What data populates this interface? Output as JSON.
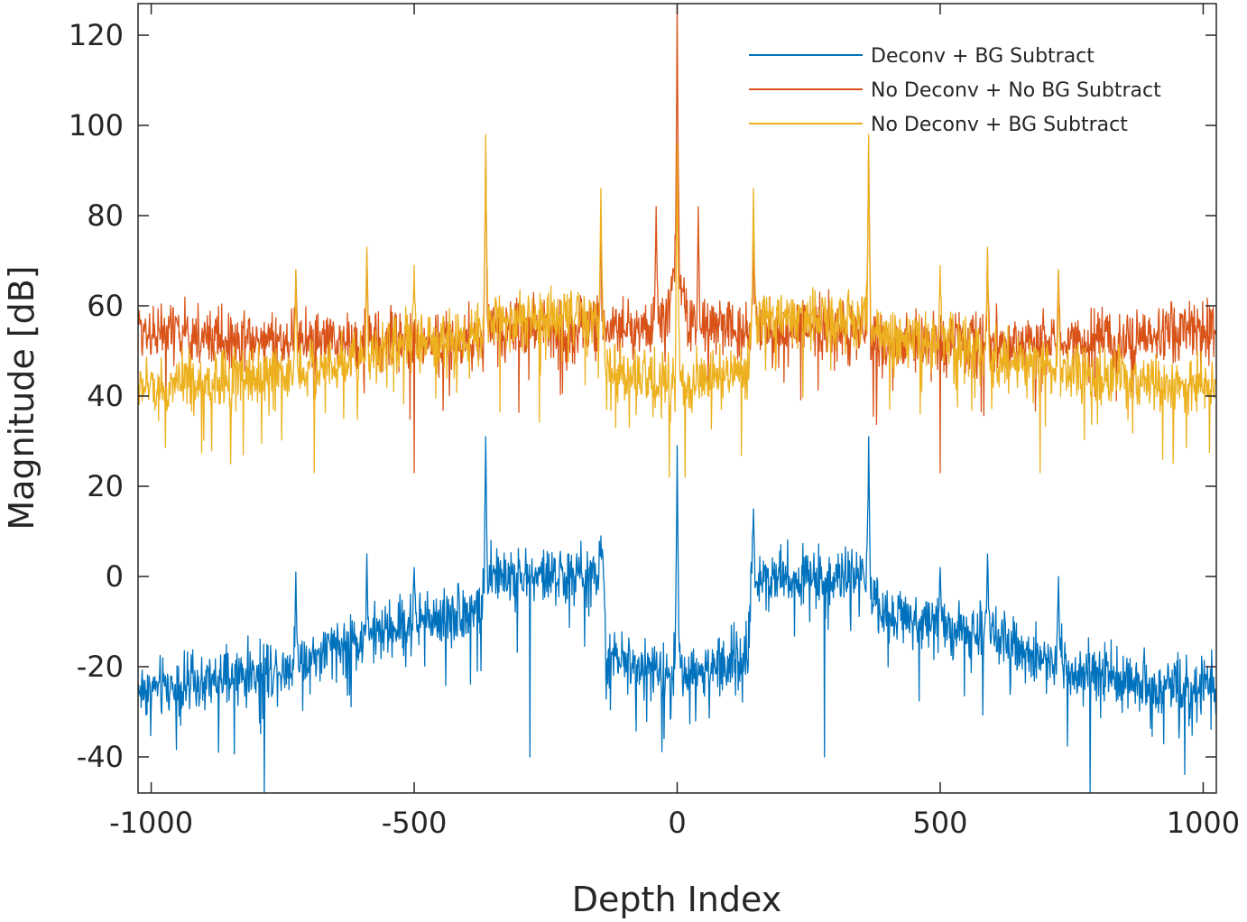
{
  "chart_data": {
    "type": "line",
    "title": "",
    "xlabel": "Depth Index",
    "ylabel": "Magnitude [dB]",
    "xlim": [
      -1025,
      1025
    ],
    "ylim": [
      -48,
      127
    ],
    "xticks": [
      -1000,
      -500,
      0,
      500,
      1000
    ],
    "yticks": [
      -40,
      -20,
      0,
      20,
      40,
      60,
      80,
      100,
      120
    ],
    "xtick_labels": [
      "-1000",
      "-500",
      "0",
      "500",
      "1000"
    ],
    "ytick_labels": [
      "-40",
      "-20",
      "0",
      "20",
      "40",
      "60",
      "80",
      "100",
      "120"
    ],
    "grid": false,
    "legend_position": "top-right",
    "series": [
      {
        "name": "Deconv + BG Subtract",
        "color": "#0072BD",
        "baseline_profile": [
          [
            -1024,
            -25
          ],
          [
            -900,
            -24
          ],
          [
            -750,
            -20
          ],
          [
            -600,
            -14
          ],
          [
            -500,
            -10
          ],
          [
            -370,
            -7
          ],
          [
            -365,
            0
          ],
          [
            -140,
            0
          ],
          [
            -135,
            -18
          ],
          [
            -10,
            -22
          ],
          [
            0,
            -12
          ],
          [
            10,
            -22
          ],
          [
            135,
            -18
          ],
          [
            140,
            0
          ],
          [
            365,
            0
          ],
          [
            370,
            -7
          ],
          [
            500,
            -10
          ],
          [
            600,
            -14
          ],
          [
            750,
            -20
          ],
          [
            900,
            -24
          ],
          [
            1024,
            -25
          ]
        ],
        "noise_amplitude": 6,
        "peaks": [
          {
            "x": 0,
            "y": 29
          },
          {
            "x": -364,
            "y": 31
          },
          {
            "x": 364,
            "y": 31
          },
          {
            "x": -145,
            "y": 9
          },
          {
            "x": 145,
            "y": 15
          },
          {
            "x": -590,
            "y": 5
          },
          {
            "x": 590,
            "y": 5
          },
          {
            "x": -725,
            "y": 1
          },
          {
            "x": 725,
            "y": 0
          },
          {
            "x": -500,
            "y": 2
          },
          {
            "x": 500,
            "y": 2
          },
          {
            "x": -785,
            "y": -48
          },
          {
            "x": 785,
            "y": -48
          },
          {
            "x": -280,
            "y": -40
          },
          {
            "x": 280,
            "y": -40
          }
        ]
      },
      {
        "name": "No Deconv + No BG Subtract",
        "color": "#D95319",
        "baseline_profile": [
          [
            -1024,
            55
          ],
          [
            -900,
            53
          ],
          [
            -750,
            52
          ],
          [
            -600,
            52
          ],
          [
            -500,
            52
          ],
          [
            -370,
            52
          ],
          [
            -365,
            55
          ],
          [
            -140,
            55
          ],
          [
            -135,
            55
          ],
          [
            -20,
            56
          ],
          [
            0,
            70
          ],
          [
            20,
            56
          ],
          [
            135,
            55
          ],
          [
            140,
            55
          ],
          [
            365,
            55
          ],
          [
            370,
            52
          ],
          [
            500,
            52
          ],
          [
            600,
            52
          ],
          [
            750,
            52
          ],
          [
            900,
            53
          ],
          [
            1024,
            55
          ]
        ],
        "noise_amplitude": 6,
        "peaks": [
          {
            "x": 0,
            "y": 127
          },
          {
            "x": -40,
            "y": 82
          },
          {
            "x": 40,
            "y": 82
          },
          {
            "x": -364,
            "y": 97
          },
          {
            "x": 364,
            "y": 97
          },
          {
            "x": -145,
            "y": 77
          },
          {
            "x": 145,
            "y": 78
          },
          {
            "x": -590,
            "y": 72
          },
          {
            "x": 590,
            "y": 72
          },
          {
            "x": -725,
            "y": 68
          },
          {
            "x": 725,
            "y": 68
          },
          {
            "x": -500,
            "y": 23
          },
          {
            "x": 500,
            "y": 23
          }
        ]
      },
      {
        "name": "No Deconv + BG Subtract",
        "color": "#EDB120",
        "baseline_profile": [
          [
            -1024,
            42
          ],
          [
            -900,
            43
          ],
          [
            -750,
            45
          ],
          [
            -600,
            49
          ],
          [
            -500,
            52
          ],
          [
            -370,
            54
          ],
          [
            -365,
            57
          ],
          [
            -140,
            57
          ],
          [
            -135,
            45
          ],
          [
            -10,
            43
          ],
          [
            0,
            50
          ],
          [
            10,
            43
          ],
          [
            135,
            45
          ],
          [
            140,
            57
          ],
          [
            365,
            57
          ],
          [
            370,
            54
          ],
          [
            500,
            52
          ],
          [
            600,
            49
          ],
          [
            750,
            45
          ],
          [
            900,
            43
          ],
          [
            1024,
            42
          ]
        ],
        "noise_amplitude": 6,
        "peaks": [
          {
            "x": 0,
            "y": 96
          },
          {
            "x": -364,
            "y": 98
          },
          {
            "x": 364,
            "y": 98
          },
          {
            "x": -145,
            "y": 86
          },
          {
            "x": 145,
            "y": 86
          },
          {
            "x": -590,
            "y": 73
          },
          {
            "x": 590,
            "y": 73
          },
          {
            "x": -725,
            "y": 68
          },
          {
            "x": 725,
            "y": 68
          },
          {
            "x": -500,
            "y": 69
          },
          {
            "x": 500,
            "y": 69
          },
          {
            "x": -690,
            "y": 23
          },
          {
            "x": 690,
            "y": 23
          },
          {
            "x": -15,
            "y": 22
          },
          {
            "x": 15,
            "y": 22
          }
        ]
      }
    ]
  }
}
